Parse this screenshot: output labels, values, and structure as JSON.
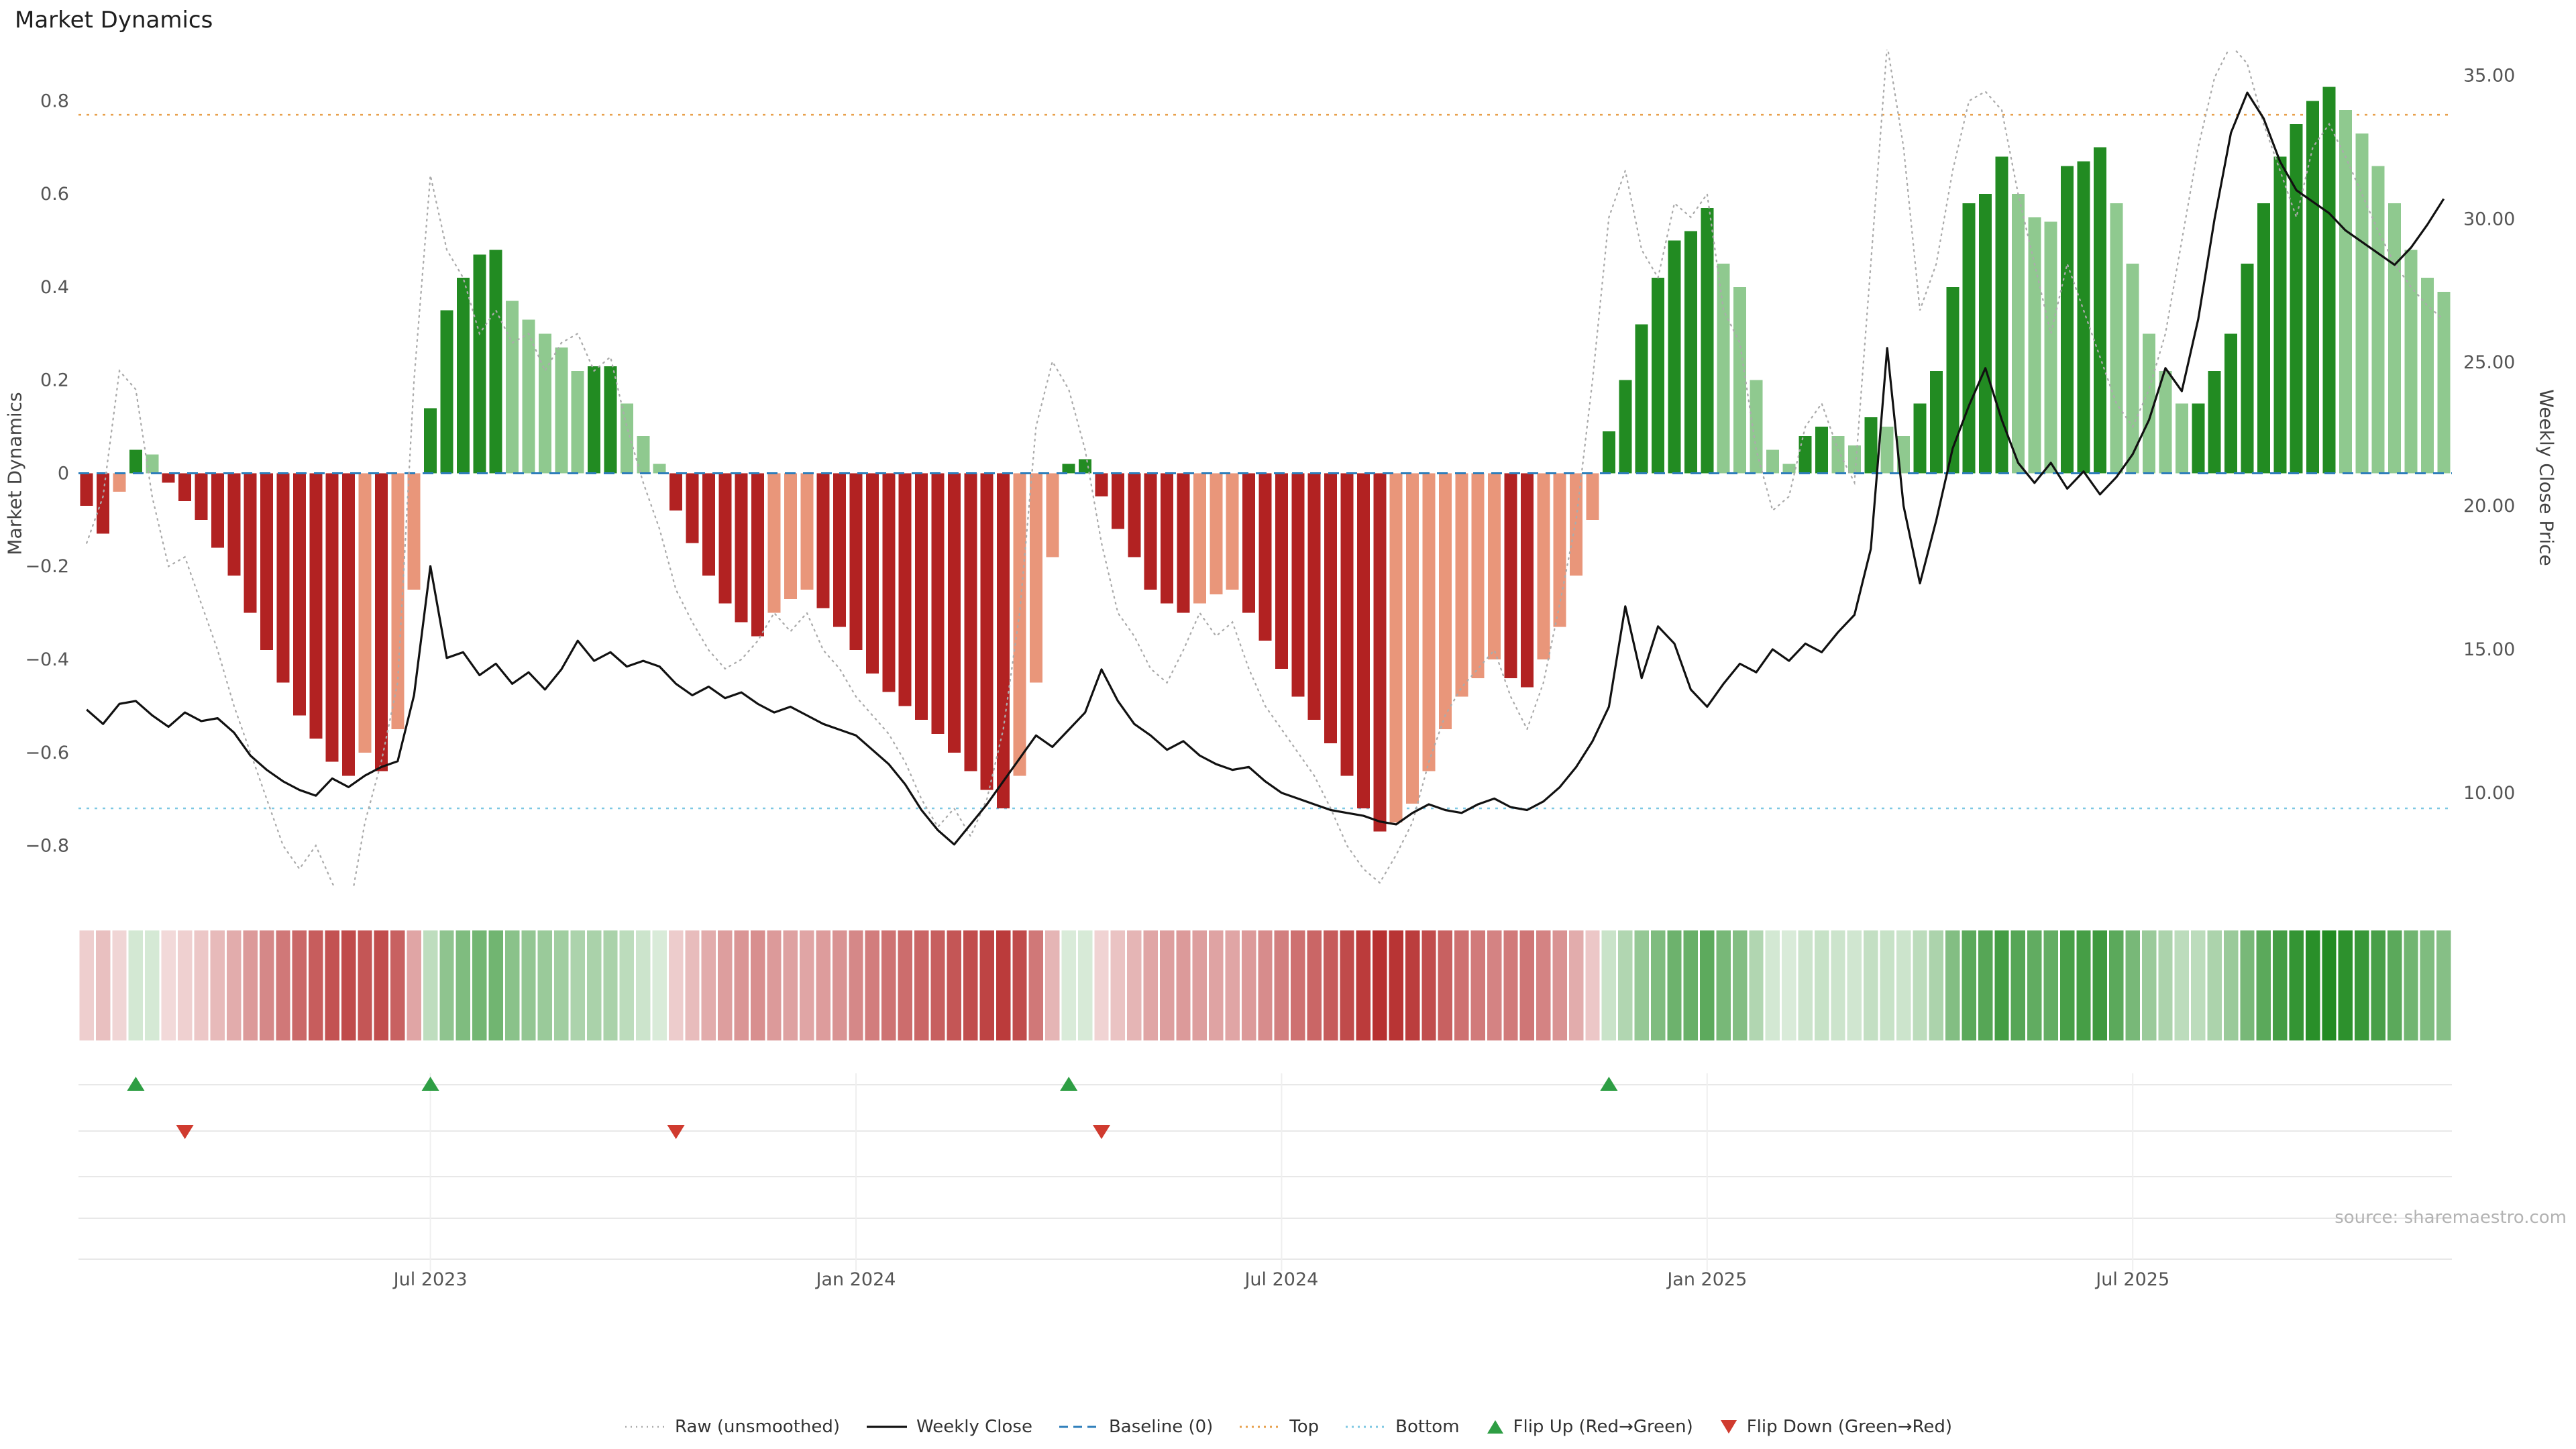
{
  "page": {
    "title": "Market Dynamics"
  },
  "source": "source: sharemaestro.com",
  "chart_data": {
    "type": "mixed",
    "title": "Market Dynamics",
    "frequency": "weekly",
    "n_points": 145,
    "left_axis": {
      "label": "Market Dynamics",
      "range": [
        -0.89,
        0.91
      ],
      "tick_values": [
        0.8,
        0.6,
        0.4,
        0.2,
        0,
        -0.2,
        -0.4,
        -0.6,
        -0.8
      ],
      "tick_labels": [
        "0.8",
        "0.6",
        "0.4",
        "0.2",
        "0",
        "−0.2",
        "−0.4",
        "−0.6",
        "−0.8"
      ]
    },
    "right_axis": {
      "label": "Weekly Close Price",
      "range": [
        6.7,
        35.9
      ],
      "tick_values": [
        35,
        30,
        25,
        20,
        15,
        10
      ],
      "tick_labels": [
        "35.00",
        "30.00",
        "25.00",
        "20.00",
        "15.00",
        "10.00"
      ]
    },
    "x_axis": {
      "tick_labels": [
        "Jul 2023",
        "Jan 2024",
        "Jul 2024",
        "Jan 2025",
        "Jul 2025"
      ],
      "tick_weeks": [
        21,
        47,
        73,
        99,
        125
      ]
    },
    "reference_lines": {
      "baseline": 0,
      "top": 0.77,
      "bottom": -0.72
    },
    "series": [
      {
        "name": "Market Dynamics (weekly bars)",
        "type": "bar",
        "axis": "left",
        "values": [
          -0.07,
          -0.13,
          -0.04,
          0.05,
          0.04,
          -0.02,
          -0.06,
          -0.1,
          -0.16,
          -0.22,
          -0.3,
          -0.38,
          -0.45,
          -0.52,
          -0.57,
          -0.62,
          -0.65,
          -0.6,
          -0.64,
          -0.55,
          -0.25,
          0.14,
          0.35,
          0.42,
          0.47,
          0.48,
          0.37,
          0.33,
          0.3,
          0.27,
          0.22,
          0.23,
          0.23,
          0.15,
          0.08,
          0.02,
          -0.08,
          -0.15,
          -0.22,
          -0.28,
          -0.32,
          -0.35,
          -0.3,
          -0.27,
          -0.25,
          -0.29,
          -0.33,
          -0.38,
          -0.43,
          -0.47,
          -0.5,
          -0.53,
          -0.56,
          -0.6,
          -0.64,
          -0.68,
          -0.72,
          -0.65,
          -0.45,
          -0.18,
          0.02,
          0.03,
          -0.05,
          -0.12,
          -0.18,
          -0.25,
          -0.28,
          -0.3,
          -0.28,
          -0.26,
          -0.25,
          -0.3,
          -0.36,
          -0.42,
          -0.48,
          -0.53,
          -0.58,
          -0.65,
          -0.72,
          -0.77,
          -0.75,
          -0.71,
          -0.64,
          -0.55,
          -0.48,
          -0.44,
          -0.4,
          -0.44,
          -0.46,
          -0.4,
          -0.33,
          -0.22,
          -0.1,
          0.09,
          0.2,
          0.32,
          0.42,
          0.5,
          0.52,
          0.57,
          0.45,
          0.4,
          0.2,
          0.05,
          0.02,
          0.08,
          0.1,
          0.08,
          0.06,
          0.12,
          0.1,
          0.08,
          0.15,
          0.22,
          0.4,
          0.58,
          0.6,
          0.68,
          0.6,
          0.55,
          0.54,
          0.66,
          0.67,
          0.7,
          0.58,
          0.45,
          0.3,
          0.22,
          0.15,
          0.15,
          0.22,
          0.3,
          0.45,
          0.58,
          0.68,
          0.75,
          0.8,
          0.83,
          0.78,
          0.73,
          0.66,
          0.58,
          0.48,
          0.42,
          0.39
        ]
      },
      {
        "name": "Weekly Close",
        "type": "line",
        "axis": "right",
        "values": [
          12.9,
          12.4,
          13.1,
          13.2,
          12.7,
          12.3,
          12.8,
          12.5,
          12.6,
          12.1,
          11.3,
          10.8,
          10.4,
          10.1,
          9.9,
          10.5,
          10.2,
          10.6,
          10.9,
          11.1,
          13.4,
          17.9,
          14.7,
          14.9,
          14.1,
          14.5,
          13.8,
          14.2,
          13.6,
          14.3,
          15.3,
          14.6,
          14.9,
          14.4,
          14.6,
          14.4,
          13.8,
          13.4,
          13.7,
          13.3,
          13.5,
          13.1,
          12.8,
          13.0,
          12.7,
          12.4,
          12.2,
          12.0,
          11.5,
          11.0,
          10.3,
          9.4,
          8.7,
          8.2,
          8.9,
          9.6,
          10.4,
          11.2,
          12.0,
          11.6,
          12.2,
          12.8,
          14.3,
          13.2,
          12.4,
          12.0,
          11.5,
          11.8,
          11.3,
          11.0,
          10.8,
          10.9,
          10.4,
          10.0,
          9.8,
          9.6,
          9.4,
          9.3,
          9.2,
          9.0,
          8.9,
          9.3,
          9.6,
          9.4,
          9.3,
          9.6,
          9.8,
          9.5,
          9.4,
          9.7,
          10.2,
          10.9,
          11.8,
          13.0,
          16.5,
          14.0,
          15.8,
          15.2,
          13.6,
          13.0,
          13.8,
          14.5,
          14.2,
          15.0,
          14.6,
          15.2,
          14.9,
          15.6,
          16.2,
          18.5,
          25.5,
          20.0,
          17.3,
          19.5,
          22.0,
          23.5,
          24.8,
          23.0,
          21.5,
          20.8,
          21.5,
          20.6,
          21.2,
          20.4,
          21.0,
          21.8,
          23.0,
          24.8,
          24.0,
          26.5,
          30.0,
          33.0,
          34.4,
          33.5,
          32.0,
          31.0,
          30.6,
          30.2,
          29.6,
          29.2,
          28.8,
          28.4,
          29.0,
          29.8,
          30.7
        ]
      },
      {
        "name": "Raw (unsmoothed)",
        "type": "line",
        "axis": "left",
        "values": [
          -0.15,
          -0.05,
          0.22,
          0.18,
          -0.05,
          -0.2,
          -0.18,
          -0.28,
          -0.38,
          -0.5,
          -0.6,
          -0.7,
          -0.8,
          -0.85,
          -0.8,
          -0.88,
          -0.95,
          -0.75,
          -0.62,
          -0.45,
          0.2,
          0.64,
          0.48,
          0.42,
          0.3,
          0.35,
          0.28,
          0.3,
          0.22,
          0.28,
          0.3,
          0.22,
          0.25,
          0.1,
          -0.02,
          -0.12,
          -0.25,
          -0.32,
          -0.38,
          -0.42,
          -0.4,
          -0.36,
          -0.3,
          -0.34,
          -0.3,
          -0.38,
          -0.42,
          -0.48,
          -0.52,
          -0.56,
          -0.62,
          -0.7,
          -0.76,
          -0.72,
          -0.78,
          -0.7,
          -0.55,
          -0.3,
          0.1,
          0.24,
          0.18,
          0.05,
          -0.15,
          -0.3,
          -0.35,
          -0.42,
          -0.45,
          -0.38,
          -0.3,
          -0.35,
          -0.32,
          -0.42,
          -0.5,
          -0.55,
          -0.6,
          -0.65,
          -0.72,
          -0.8,
          -0.85,
          -0.88,
          -0.82,
          -0.75,
          -0.62,
          -0.52,
          -0.46,
          -0.42,
          -0.38,
          -0.48,
          -0.55,
          -0.45,
          -0.28,
          -0.1,
          0.2,
          0.55,
          0.65,
          0.48,
          0.42,
          0.58,
          0.55,
          0.6,
          0.35,
          0.28,
          0.05,
          -0.08,
          -0.05,
          0.1,
          0.15,
          0.05,
          -0.02,
          0.45,
          0.92,
          0.7,
          0.35,
          0.45,
          0.65,
          0.8,
          0.82,
          0.78,
          0.6,
          0.45,
          0.3,
          0.45,
          0.35,
          0.25,
          0.15,
          0.1,
          0.18,
          0.3,
          0.5,
          0.7,
          0.85,
          0.92,
          0.88,
          0.75,
          0.65,
          0.55,
          0.7,
          0.75,
          0.68,
          0.6,
          0.52,
          0.45,
          0.4,
          0.36,
          0.33
        ]
      }
    ],
    "flips": {
      "up_weeks": [
        3,
        21,
        60,
        93
      ],
      "down_weeks": [
        6,
        36,
        62
      ]
    },
    "colors": {
      "bar_pos_strong": "#228B22",
      "bar_pos_weak": "#8FC98F",
      "bar_neg_strong": "#B22222",
      "bar_neg_weak": "#E9967A",
      "weekly_close": "#111111",
      "raw": "#ABABAB",
      "baseline": "#2E7EBB",
      "top": "#E8A04C",
      "bottom": "#7EC8E3",
      "flip_up": "#2E9E44",
      "flip_down": "#D03B2F",
      "strip_pos": "#228B22",
      "strip_neg": "#B22222"
    },
    "legend_position": "bottom-center",
    "grid": "light horizontal rows in marker panel"
  },
  "legend": {
    "items": [
      {
        "id": "raw",
        "label": "Raw (unsmoothed)",
        "kind": "line",
        "color": "#ABABAB",
        "dash": "2 6",
        "width": 2.5
      },
      {
        "id": "weekly-close",
        "label": "Weekly Close",
        "kind": "line",
        "color": "#111111",
        "dash": "",
        "width": 3.2
      },
      {
        "id": "baseline",
        "label": "Baseline (0)",
        "kind": "line",
        "color": "#2E7EBB",
        "dash": "13 8",
        "width": 3
      },
      {
        "id": "top",
        "label": "Top",
        "kind": "line",
        "color": "#E8A04C",
        "dash": "3 6",
        "width": 3
      },
      {
        "id": "bottom",
        "label": "Bottom",
        "kind": "line",
        "color": "#7EC8E3",
        "dash": "3 6",
        "width": 3
      },
      {
        "id": "flip-up",
        "label": "Flip Up (Red→Green)",
        "kind": "tri-up",
        "color": "#2E9E44"
      },
      {
        "id": "flip-down",
        "label": "Flip Down (Green→Red)",
        "kind": "tri-down",
        "color": "#D03B2F"
      }
    ]
  }
}
